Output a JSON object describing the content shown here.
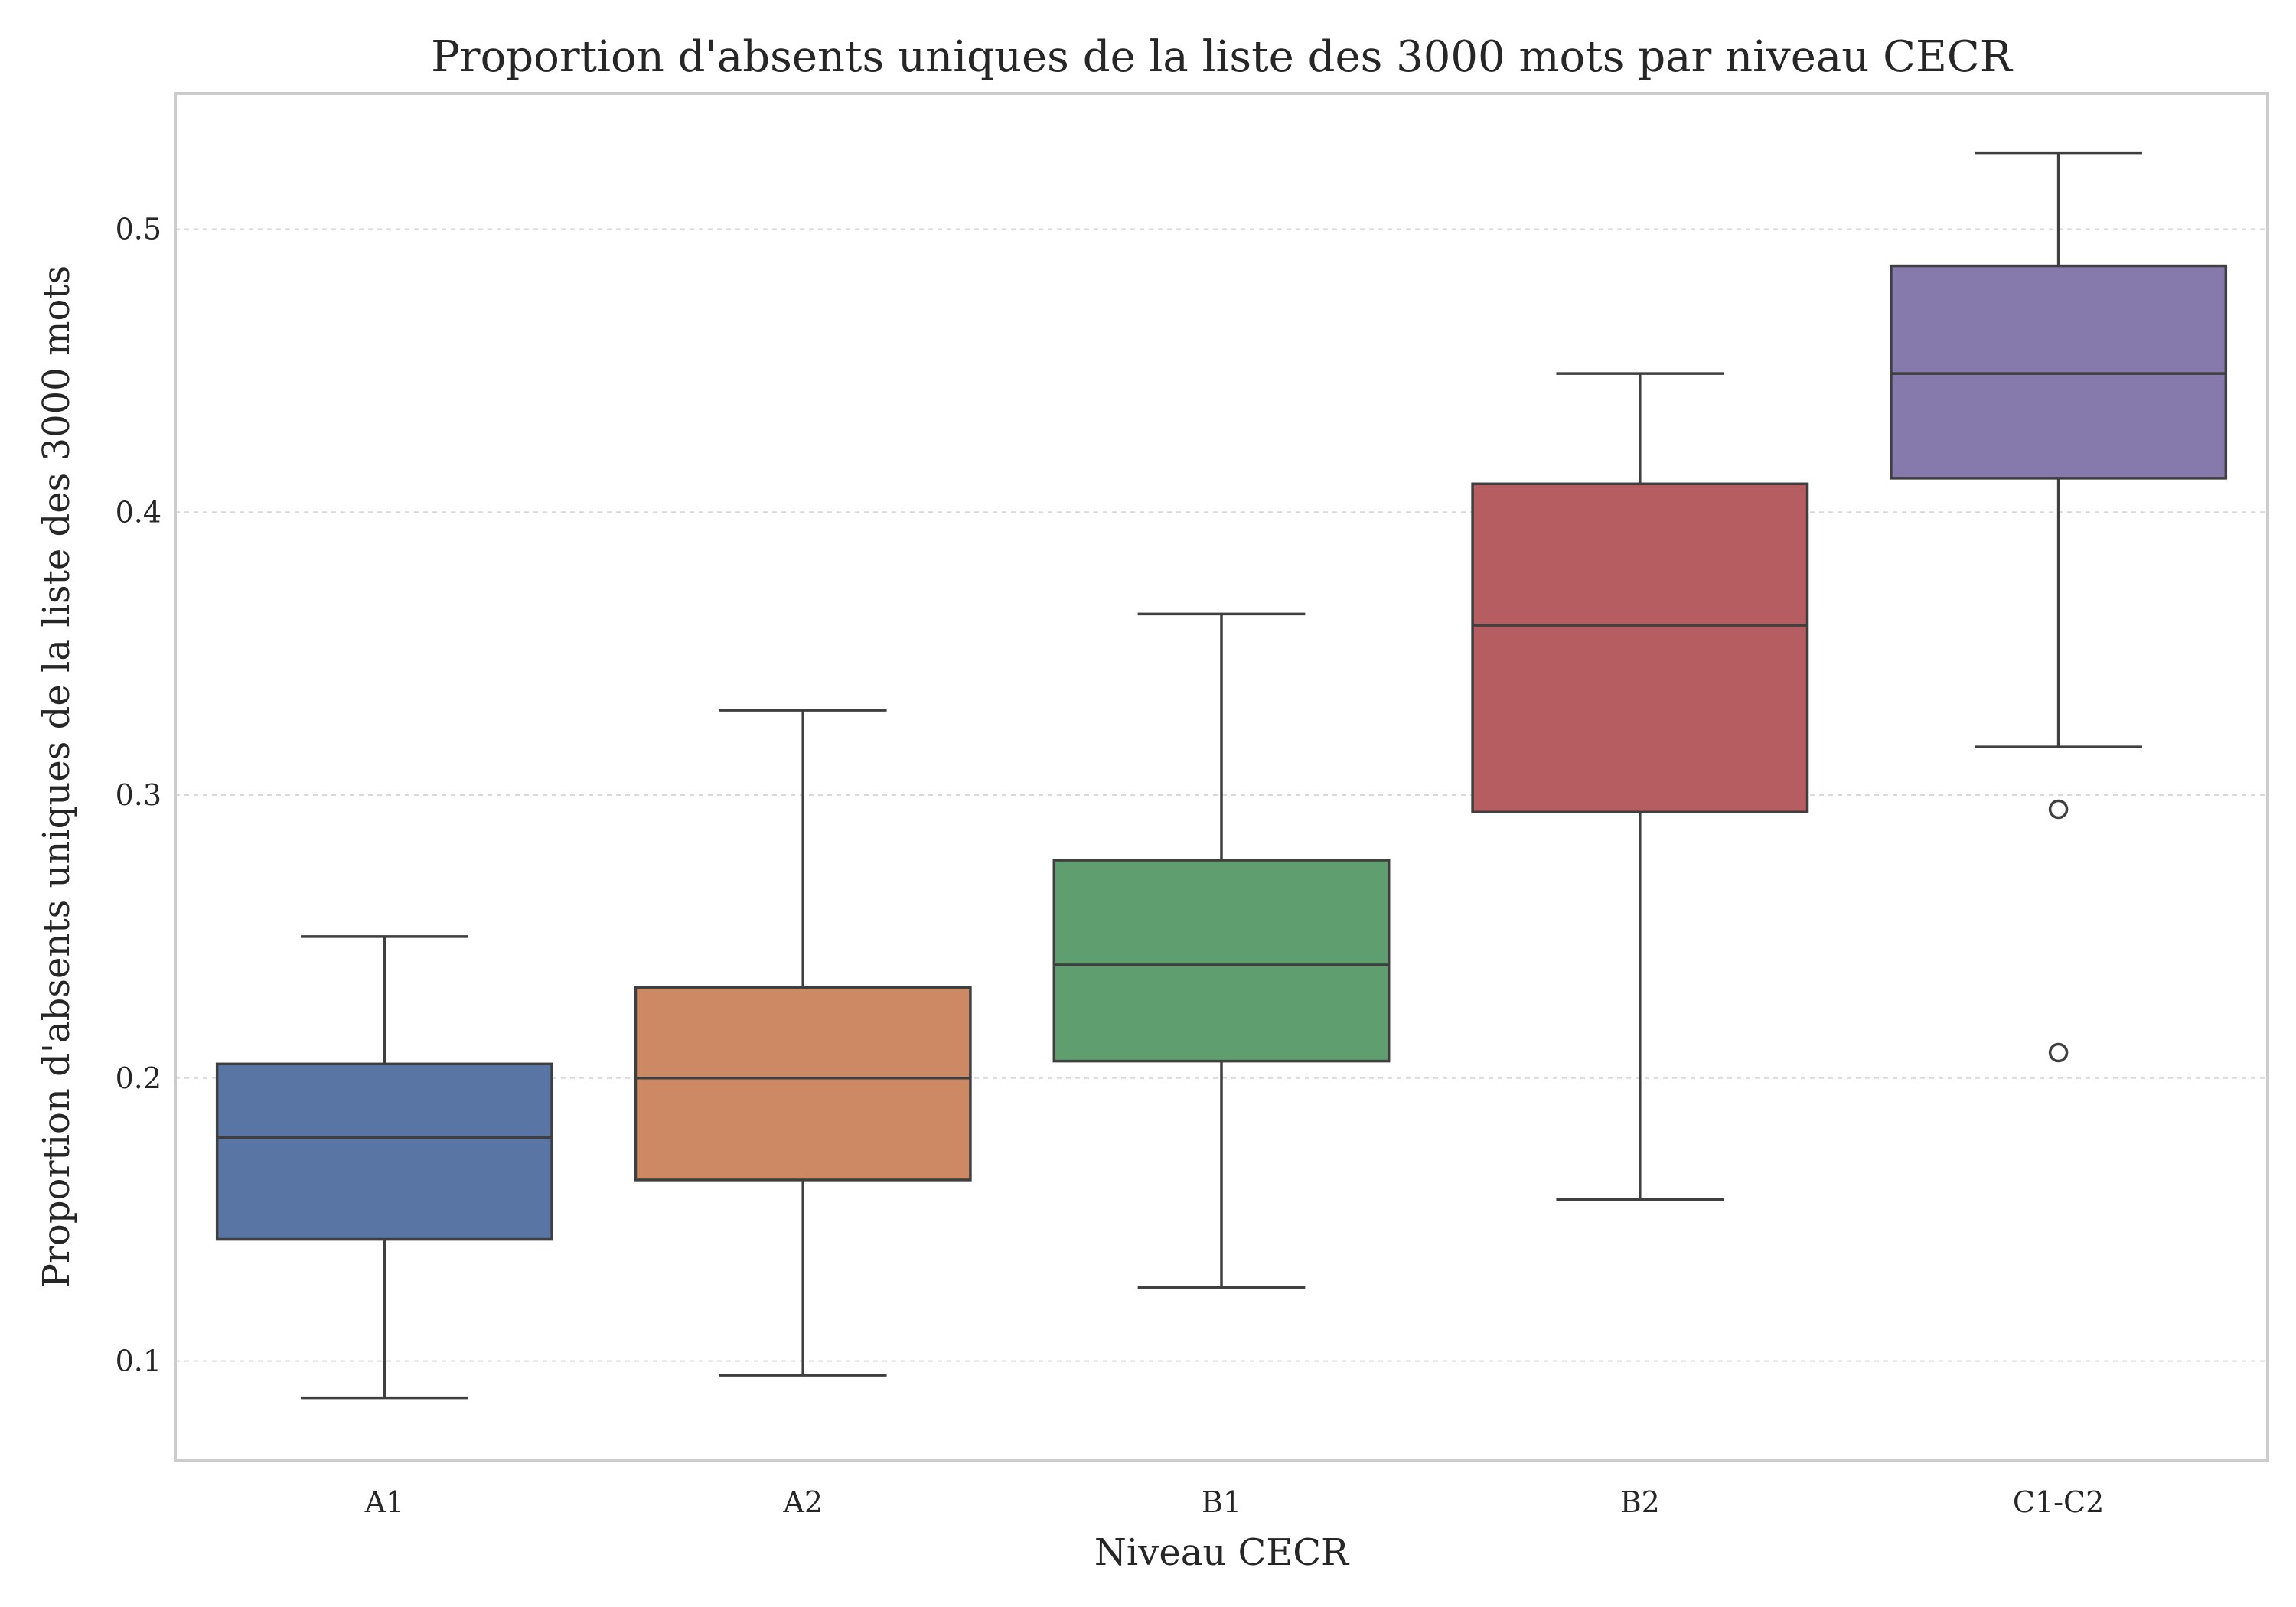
{
  "chart_data": {
    "type": "box",
    "title": "Proportion d'absents uniques de la liste des 3000 mots par niveau CECR",
    "xlabel": "Niveau CECR",
    "ylabel": "Proportion d'absents uniques de la liste des 3000 mots",
    "categories": [
      "A1",
      "A2",
      "B1",
      "B2",
      "C1-C2"
    ],
    "ylim": [
      0.065,
      0.548
    ],
    "yticks": [
      "0.1",
      "0.2",
      "0.3",
      "0.4",
      "0.5"
    ],
    "grid": true,
    "colors": [
      "#5875a4",
      "#cc8963",
      "#5f9e6e",
      "#b55d60",
      "#857aab"
    ],
    "boxes": [
      {
        "category": "A1",
        "whisker_low": 0.087,
        "q1": 0.143,
        "median": 0.179,
        "q3": 0.205,
        "whisker_high": 0.25,
        "outliers": []
      },
      {
        "category": "A2",
        "whisker_low": 0.095,
        "q1": 0.164,
        "median": 0.2,
        "q3": 0.232,
        "whisker_high": 0.33,
        "outliers": []
      },
      {
        "category": "B1",
        "whisker_low": 0.126,
        "q1": 0.206,
        "median": 0.24,
        "q3": 0.277,
        "whisker_high": 0.364,
        "outliers": []
      },
      {
        "category": "B2",
        "whisker_low": 0.157,
        "q1": 0.294,
        "median": 0.36,
        "q3": 0.41,
        "whisker_high": 0.449,
        "outliers": []
      },
      {
        "category": "C1-C2",
        "whisker_low": 0.317,
        "q1": 0.412,
        "median": 0.449,
        "q3": 0.487,
        "whisker_high": 0.527,
        "outliers": [
          0.295,
          0.209
        ]
      }
    ]
  }
}
